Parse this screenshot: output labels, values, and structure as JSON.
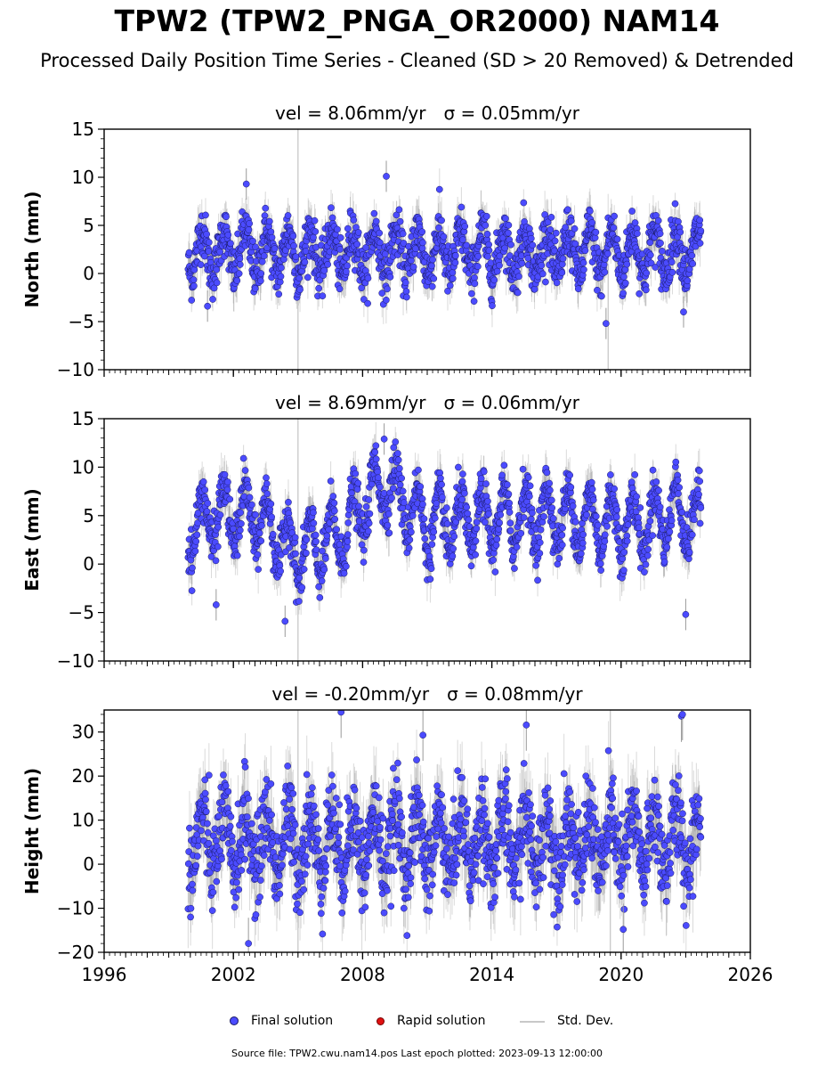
{
  "title": "TPW2 (TPW2_PNGA_OR2000) NAM14",
  "subtitle": "Processed Daily Position Time Series - Cleaned (SD > 20 Removed) & Detrended",
  "legend": {
    "final": "Final solution",
    "rapid": "Rapid solution",
    "std": "Std. Dev."
  },
  "footer": "Source file: TPW2.cwu.nam14.pos  Last epoch plotted: 2023-09-13 12:00:00",
  "colors": {
    "final_fill": "#4b4bff",
    "final_edge": "#1a1a66",
    "rapid": "#e01010",
    "std_line": "#c8c8c8"
  },
  "chart_data": [
    {
      "type": "scatter",
      "panel": "north",
      "title_prefix": "vel = 8.06mm/yr",
      "title_sigma": "σ = 0.05mm/yr",
      "ylabel": "North (mm)",
      "xlim": [
        1996,
        2026
      ],
      "ylim": [
        -10,
        15
      ],
      "yticks": [
        -10,
        -5,
        0,
        5,
        10,
        15
      ],
      "xticks": [
        1996,
        2002,
        2008,
        2014,
        2020,
        2026
      ],
      "show_xtick_labels": false,
      "data_start": 1999.9,
      "data_end": 2023.7,
      "mean": 2.2,
      "annual_amplitude": 2.3,
      "noise": 1.3,
      "sd": 1.8,
      "outliers": [
        [
          2002.6,
          9.3
        ],
        [
          2009.1,
          10.1
        ],
        [
          2019.3,
          -5.2
        ],
        [
          2022.9,
          -4.0
        ],
        [
          2000.8,
          -3.4
        ]
      ],
      "vlines": [
        [
          2005.0,
          -10,
          15
        ],
        [
          2019.4,
          -10,
          1
        ]
      ]
    },
    {
      "type": "scatter",
      "panel": "east",
      "title_prefix": "vel = 8.69mm/yr",
      "title_sigma": "σ = 0.06mm/yr",
      "ylabel": "East (mm)",
      "xlim": [
        1996,
        2026
      ],
      "ylim": [
        -10,
        15
      ],
      "yticks": [
        -10,
        -5,
        0,
        5,
        10,
        15
      ],
      "xticks": [
        1996,
        2002,
        2008,
        2014,
        2020,
        2026
      ],
      "show_xtick_labels": false,
      "data_start": 1999.9,
      "data_end": 2023.7,
      "trend_knots": [
        [
          1999.9,
          3.5
        ],
        [
          2001.0,
          5.0
        ],
        [
          2003.0,
          5.0
        ],
        [
          2005.0,
          1.0
        ],
        [
          2007.0,
          3.0
        ],
        [
          2009.0,
          8.5
        ],
        [
          2009.7,
          7.0
        ],
        [
          2011.0,
          4.0
        ],
        [
          2016.0,
          5.0
        ],
        [
          2021.0,
          4.0
        ],
        [
          2022.5,
          5.5
        ],
        [
          2023.7,
          4.0
        ]
      ],
      "annual_amplitude": 3.0,
      "noise": 1.2,
      "sd": 1.8,
      "outliers": [
        [
          2001.2,
          -4.2
        ],
        [
          2004.4,
          -5.9
        ],
        [
          2023.0,
          -5.2
        ],
        [
          2009.0,
          12.9
        ]
      ],
      "vlines": [
        [
          2005.0,
          -10,
          15
        ]
      ]
    },
    {
      "type": "scatter",
      "panel": "height",
      "title_prefix": "vel = -0.20mm/yr",
      "title_sigma": "σ = 0.08mm/yr",
      "ylabel": "Height (mm)",
      "xlim": [
        1996,
        2026
      ],
      "ylim": [
        -20,
        35
      ],
      "yticks": [
        -20,
        -10,
        0,
        10,
        20,
        30
      ],
      "xticks": [
        1996,
        2002,
        2008,
        2014,
        2020,
        2026
      ],
      "show_xtick_labels": true,
      "data_start": 1999.9,
      "data_end": 2023.7,
      "mean": 5.0,
      "annual_amplitude": 6.5,
      "noise": 5.0,
      "sd": 6.5,
      "outliers": [
        [
          2007.0,
          34.5
        ],
        [
          2022.8,
          33.6
        ],
        [
          2022.85,
          34.0
        ],
        [
          2010.8,
          29.3
        ],
        [
          2015.6,
          31.6
        ],
        [
          2002.7,
          -18.0
        ],
        [
          2020.1,
          -14.8
        ]
      ],
      "vlines": [
        [
          2005.0,
          -20,
          35
        ],
        [
          2019.5,
          -20,
          35
        ]
      ]
    }
  ]
}
